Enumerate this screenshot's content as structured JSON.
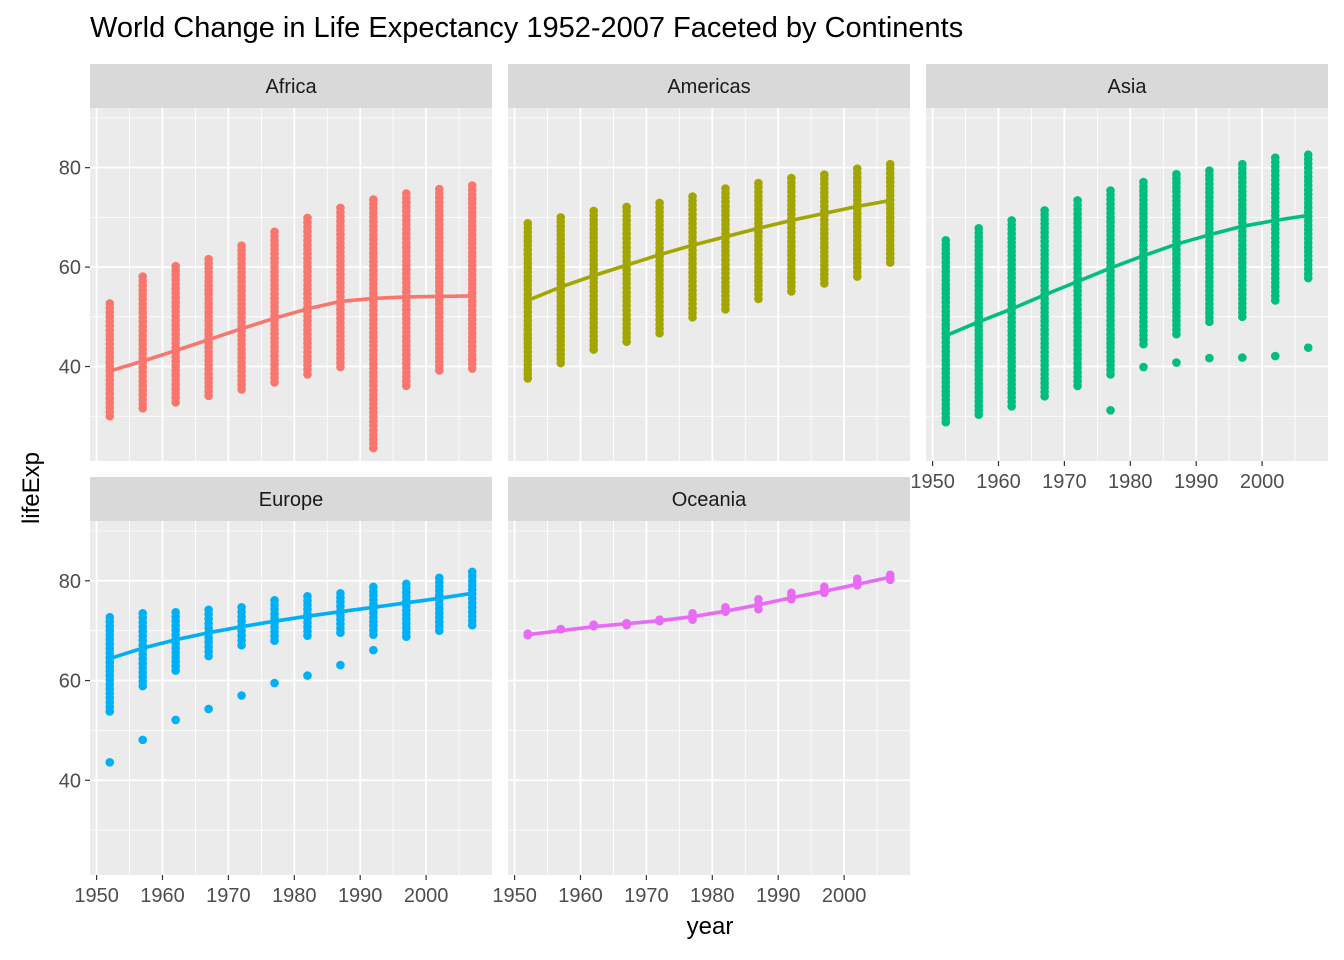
{
  "chart_data": {
    "type": "scatter",
    "title": "World Change in Life Expectancy 1952-2007 Faceted by Continents",
    "xlabel": "year",
    "ylabel": "lifeExp",
    "xlim": [
      1949,
      2010
    ],
    "ylim": [
      21,
      92
    ],
    "x_ticks": [
      1950,
      1960,
      1970,
      1980,
      1990,
      2000
    ],
    "y_ticks": [
      40,
      60,
      80
    ],
    "grid": true,
    "legend": "none",
    "facets": [
      {
        "name": "Africa",
        "color": "#F8766D",
        "years": [
          1952,
          1957,
          1962,
          1967,
          1972,
          1977,
          1982,
          1987,
          1992,
          1997,
          2002,
          2007
        ],
        "min": [
          30.0,
          31.6,
          32.8,
          34.1,
          35.4,
          36.8,
          38.4,
          39.9,
          23.6,
          36.1,
          39.2,
          39.6
        ],
        "max": [
          52.7,
          58.1,
          60.2,
          61.6,
          64.3,
          67.1,
          69.9,
          71.9,
          73.6,
          74.8,
          75.7,
          76.4
        ],
        "outliers": [],
        "smooth": [
          39.1,
          41.1,
          43.2,
          45.4,
          47.6,
          49.7,
          51.6,
          53.1,
          53.7,
          54.0,
          54.1,
          54.2
        ]
      },
      {
        "name": "Americas",
        "color": "#A3A500",
        "years": [
          1952,
          1957,
          1962,
          1967,
          1972,
          1977,
          1982,
          1987,
          1992,
          1997,
          2002,
          2007
        ],
        "min": [
          37.6,
          40.7,
          43.4,
          45.0,
          46.7,
          49.9,
          51.5,
          53.6,
          55.1,
          56.7,
          58.1,
          60.9
        ],
        "max": [
          68.8,
          70.0,
          71.3,
          72.1,
          72.9,
          74.2,
          75.8,
          76.9,
          77.9,
          78.6,
          79.8,
          80.7
        ],
        "outliers": [],
        "smooth": [
          53.3,
          56.0,
          58.3,
          60.4,
          62.5,
          64.4,
          66.1,
          67.8,
          69.4,
          70.8,
          72.2,
          73.4
        ]
      },
      {
        "name": "Asia",
        "color": "#00BF7D",
        "years": [
          1952,
          1957,
          1962,
          1967,
          1972,
          1977,
          1982,
          1987,
          1992,
          1997,
          2002,
          2007
        ],
        "min": [
          28.8,
          30.3,
          32.0,
          34.0,
          36.1,
          38.4,
          44.5,
          46.5,
          49.0,
          50.0,
          53.3,
          57.8
        ],
        "max": [
          65.4,
          67.8,
          69.4,
          71.4,
          73.4,
          75.4,
          77.1,
          78.7,
          79.4,
          80.7,
          82.0,
          82.6
        ],
        "outliers": [
          [
            1977,
            31.2
          ],
          [
            1982,
            39.9
          ],
          [
            1987,
            40.8
          ],
          [
            1992,
            41.7
          ],
          [
            1997,
            41.8
          ],
          [
            2002,
            42.1
          ],
          [
            2007,
            43.8
          ]
        ],
        "smooth": [
          46.2,
          49.0,
          51.6,
          54.4,
          57.1,
          59.8,
          62.3,
          64.6,
          66.5,
          68.2,
          69.4,
          70.4
        ]
      },
      {
        "name": "Europe",
        "color": "#00B0F6",
        "years": [
          1952,
          1957,
          1962,
          1967,
          1972,
          1977,
          1982,
          1987,
          1992,
          1997,
          2002,
          2007
        ],
        "min": [
          53.8,
          58.9,
          62.0,
          64.9,
          67.1,
          68.0,
          69.0,
          69.6,
          69.2,
          68.8,
          70.0,
          71.1
        ],
        "max": [
          72.7,
          73.5,
          73.7,
          74.2,
          74.7,
          76.1,
          76.9,
          77.5,
          78.8,
          79.4,
          80.6,
          81.8
        ],
        "outliers": [
          [
            1952,
            43.6
          ],
          [
            1957,
            48.1
          ],
          [
            1962,
            52.1
          ],
          [
            1967,
            54.3
          ],
          [
            1972,
            57.0
          ],
          [
            1977,
            59.5
          ],
          [
            1982,
            61.0
          ],
          [
            1987,
            63.1
          ],
          [
            1992,
            66.1
          ]
        ],
        "smooth": [
          64.4,
          66.5,
          68.2,
          69.6,
          70.8,
          71.9,
          72.9,
          73.8,
          74.7,
          75.6,
          76.5,
          77.5
        ]
      },
      {
        "name": "Oceania",
        "color": "#E76BF3",
        "years": [
          1952,
          1957,
          1962,
          1967,
          1972,
          1977,
          1982,
          1987,
          1992,
          1997,
          2002,
          2007
        ],
        "min": [
          69.1,
          70.3,
          70.9,
          71.1,
          71.9,
          72.2,
          73.8,
          74.3,
          76.3,
          77.6,
          79.1,
          80.2
        ],
        "max": [
          69.4,
          70.3,
          71.2,
          71.5,
          72.2,
          73.5,
          74.7,
          76.3,
          77.6,
          78.8,
          80.4,
          81.2
        ],
        "outliers": [],
        "smooth": [
          69.2,
          70.0,
          70.8,
          71.4,
          72.0,
          72.8,
          73.9,
          75.2,
          76.6,
          77.9,
          79.3,
          80.7
        ]
      }
    ]
  }
}
